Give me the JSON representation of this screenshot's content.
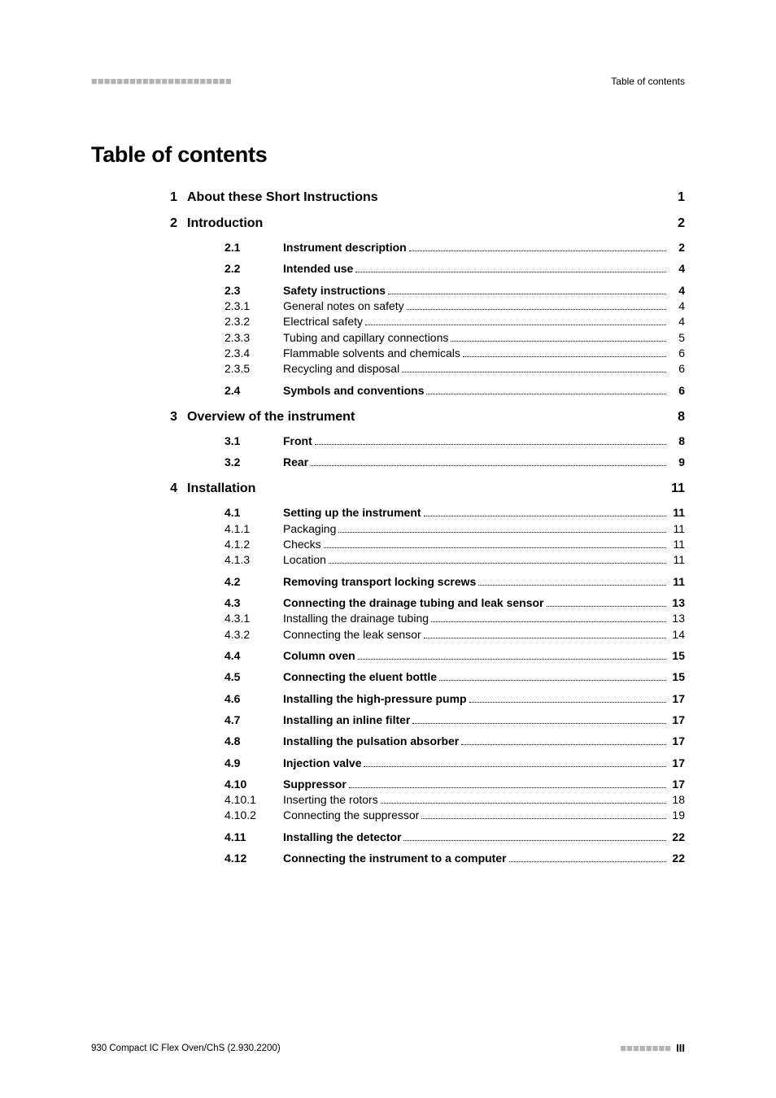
{
  "header": {
    "left_marks": "■■■■■■■■■■■■■■■■■■■■■■",
    "right": "Table of contents"
  },
  "title": "Table of contents",
  "chapters": [
    {
      "num": "1",
      "title": "About these Short Instructions",
      "page": "1",
      "entries": []
    },
    {
      "num": "2",
      "title": "Introduction",
      "page": "2",
      "entries": [
        {
          "num": "2.1",
          "label": "Instrument description",
          "page": "2",
          "bold": true,
          "gap_after": true
        },
        {
          "num": "2.2",
          "label": "Intended use",
          "page": "4",
          "bold": true,
          "gap_after": true
        },
        {
          "num": "2.3",
          "label": "Safety instructions",
          "page": "4",
          "bold": true
        },
        {
          "num": "2.3.1",
          "label": "General notes on safety",
          "page": "4"
        },
        {
          "num": "2.3.2",
          "label": "Electrical safety",
          "page": "4"
        },
        {
          "num": "2.3.3",
          "label": "Tubing and capillary connections",
          "page": "5"
        },
        {
          "num": "2.3.4",
          "label": "Flammable solvents and chemicals",
          "page": "6"
        },
        {
          "num": "2.3.5",
          "label": "Recycling and disposal",
          "page": "6",
          "gap_after": true
        },
        {
          "num": "2.4",
          "label": "Symbols and conventions",
          "page": "6",
          "bold": true
        }
      ]
    },
    {
      "num": "3",
      "title": "Overview of the instrument",
      "page": "8",
      "entries": [
        {
          "num": "3.1",
          "label": "Front",
          "page": "8",
          "bold": true,
          "gap_after": true
        },
        {
          "num": "3.2",
          "label": "Rear",
          "page": "9",
          "bold": true
        }
      ]
    },
    {
      "num": "4",
      "title": "Installation",
      "page": "11",
      "entries": [
        {
          "num": "4.1",
          "label": "Setting up the instrument",
          "page": "11",
          "bold": true
        },
        {
          "num": "4.1.1",
          "label": "Packaging",
          "page": "11"
        },
        {
          "num": "4.1.2",
          "label": "Checks",
          "page": "11"
        },
        {
          "num": "4.1.3",
          "label": "Location",
          "page": "11",
          "gap_after": true
        },
        {
          "num": "4.2",
          "label": "Removing transport locking screws",
          "page": "11",
          "bold": true,
          "gap_after": true
        },
        {
          "num": "4.3",
          "label": "Connecting the drainage tubing and leak sensor",
          "page": "13",
          "bold": true
        },
        {
          "num": "4.3.1",
          "label": "Installing the drainage tubing",
          "page": "13"
        },
        {
          "num": "4.3.2",
          "label": "Connecting the leak sensor",
          "page": "14",
          "gap_after": true
        },
        {
          "num": "4.4",
          "label": "Column oven",
          "page": "15",
          "bold": true,
          "gap_after": true
        },
        {
          "num": "4.5",
          "label": "Connecting the eluent bottle",
          "page": "15",
          "bold": true,
          "gap_after": true
        },
        {
          "num": "4.6",
          "label": "Installing the high-pressure pump",
          "page": "17",
          "bold": true,
          "gap_after": true
        },
        {
          "num": "4.7",
          "label": "Installing an inline filter",
          "page": "17",
          "bold": true,
          "gap_after": true
        },
        {
          "num": "4.8",
          "label": "Installing the pulsation absorber",
          "page": "17",
          "bold": true,
          "gap_after": true
        },
        {
          "num": "4.9",
          "label": "Injection valve",
          "page": "17",
          "bold": true,
          "gap_after": true
        },
        {
          "num": "4.10",
          "label": "Suppressor",
          "page": "17",
          "bold": true
        },
        {
          "num": "4.10.1",
          "label": "Inserting the rotors",
          "page": "18"
        },
        {
          "num": "4.10.2",
          "label": "Connecting the suppressor",
          "page": "19",
          "gap_after": true
        },
        {
          "num": "4.11",
          "label": "Installing the detector",
          "page": "22",
          "bold": true,
          "gap_after": true
        },
        {
          "num": "4.12",
          "label": "Connecting the instrument to a computer",
          "page": "22",
          "bold": true
        }
      ]
    }
  ],
  "footer": {
    "left": "930 Compact IC Flex Oven/ChS (2.930.2200)",
    "right_marks": "■■■■■■■■",
    "page": "III"
  }
}
